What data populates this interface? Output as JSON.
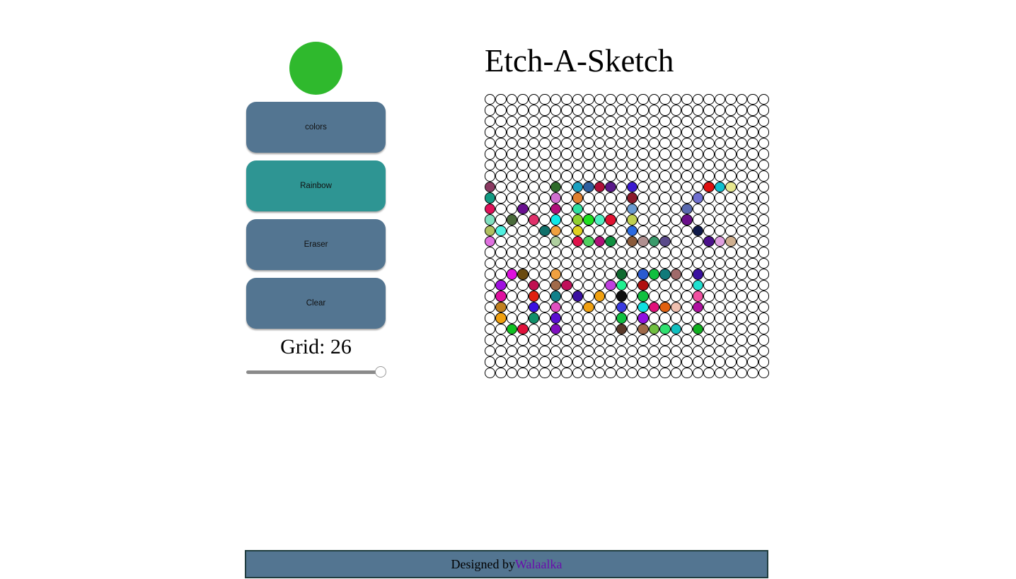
{
  "app": {
    "title": "Etch-A-Sketch",
    "current_color": "#2fb92d"
  },
  "controls": {
    "colors_label": "colors",
    "rainbow_label": "Rainbow",
    "eraser_label": "Eraser",
    "clear_label": "Clear",
    "active_mode": "Rainbow",
    "button_color": "#537591",
    "active_button_color": "#2e9593"
  },
  "grid": {
    "label": "Grid: 26",
    "size": 26,
    "slider_value": 1.0,
    "painted": {
      "8": {
        "0": "#8b3a62",
        "6": "#2e6b2a",
        "8": "#1aa0c0",
        "9": "#2e5fa0",
        "10": "#b0103a",
        "11": "#5a1a8a",
        "13": "#3a1ad0",
        "20": "#e01010",
        "21": "#10c0d0",
        "22": "#e8e890"
      },
      "9": {
        "0": "#129a82",
        "6": "#d070d0",
        "8": "#e08030",
        "13": "#8a1a2a",
        "19": "#7070d0"
      },
      "10": {
        "0": "#e0105a",
        "3": "#6a1090",
        "6": "#b0107a",
        "8": "#30e0a0",
        "13": "#6a9ad0",
        "18": "#5a6ab0"
      },
      "11": {
        "0": "#80e0c0",
        "2": "#4a6a3a",
        "4": "#e0306a",
        "6": "#10e8e8",
        "8": "#90d030",
        "9": "#20e020",
        "10": "#50f0c0",
        "11": "#e01030",
        "13": "#c0d050",
        "18": "#6a108a"
      },
      "12": {
        "0": "#b0c060",
        "1": "#50f0e0",
        "5": "#10706a",
        "6": "#f0a040",
        "8": "#e0d020",
        "13": "#2a6ae0",
        "19": "#101a4a"
      },
      "13": {
        "0": "#e070e0",
        "6": "#b0d0a0",
        "8": "#e0104a",
        "9": "#50d060",
        "10": "#b0107a",
        "11": "#109040",
        "13": "#8a5a3a",
        "14": "#b09090",
        "15": "#3a9a6a",
        "16": "#5a4a8a",
        "20": "#4a108a",
        "21": "#e0a0e0",
        "22": "#d0b090"
      },
      "16": {
        "2": "#e010e0",
        "3": "#6a4a10",
        "6": "#f0a040",
        "12": "#106a30",
        "14": "#2a5ad0",
        "15": "#10c040",
        "16": "#107a7a",
        "17": "#a06a6a",
        "19": "#3a10a0"
      },
      "17": {
        "1": "#a010e0",
        "4": "#c01050",
        "6": "#a06a4a",
        "7": "#c0105a",
        "11": "#c040e0",
        "12": "#20f090",
        "14": "#b01010",
        "19": "#20e0d0"
      },
      "18": {
        "1": "#e010a0",
        "4": "#e02010",
        "6": "#10808a",
        "8": "#3a10a0",
        "10": "#f0a010",
        "12": "#101010",
        "14": "#10c040",
        "19": "#f050a0"
      },
      "19": {
        "1": "#c08020",
        "4": "#3a10e0",
        "6": "#e050c0",
        "9": "#f0a010",
        "12": "#3a3ae0",
        "14": "#10e0e0",
        "15": "#e0107a",
        "16": "#e06010",
        "17": "#f0c0b0",
        "19": "#b010a0"
      },
      "20": {
        "1": "#f0a010",
        "4": "#10906a",
        "6": "#5a10d0",
        "12": "#10c040",
        "14": "#9010e0"
      },
      "21": {
        "2": "#10c020",
        "3": "#e0103a",
        "6": "#8010c0",
        "12": "#5a3a2a",
        "14": "#a06a4a",
        "15": "#70c040",
        "16": "#30e070",
        "17": "#10c0c0",
        "19": "#10b020"
      }
    }
  },
  "footer": {
    "prefix": "Designed by",
    "author": "Walaalka"
  }
}
